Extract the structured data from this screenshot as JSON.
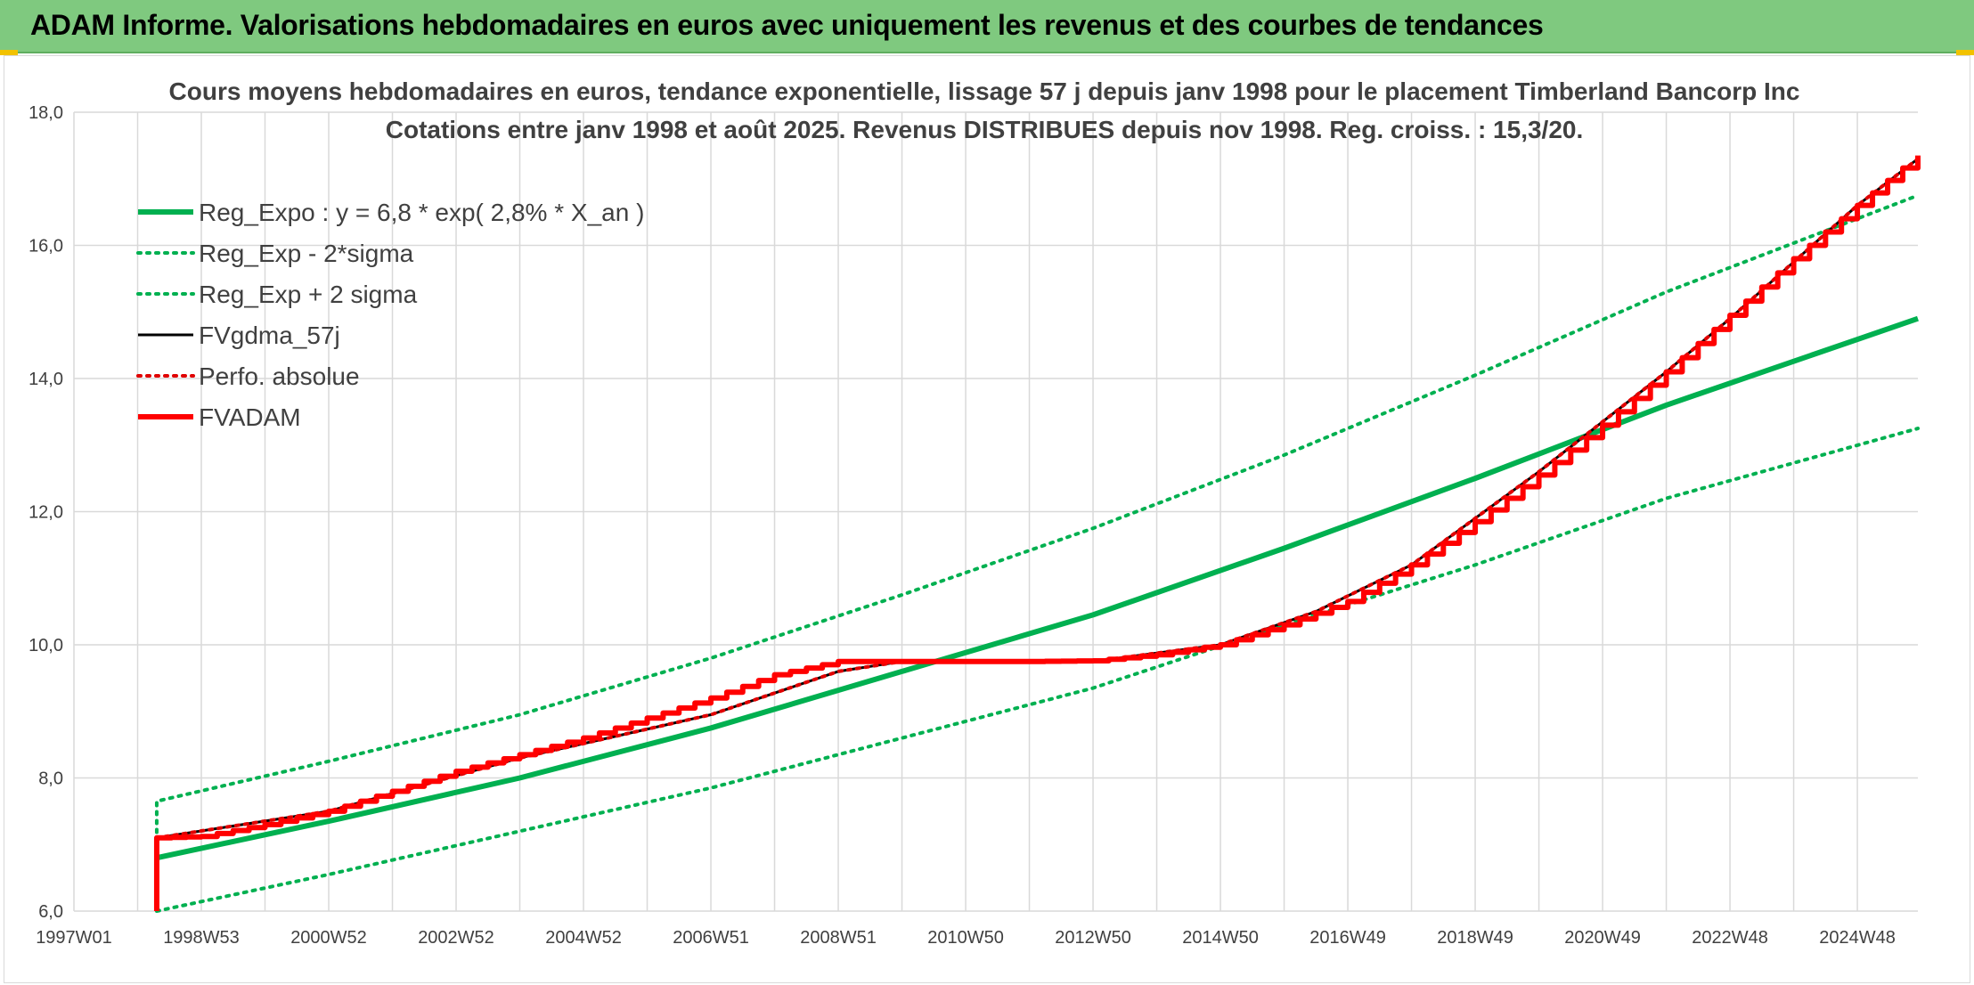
{
  "banner": {
    "title": "ADAM Informe. Valorisations hebdomadaires en euros avec uniquement les revenus et des courbes de tendances"
  },
  "colors": {
    "banner_bg": "#7fc97f",
    "trend_green": "#00b050",
    "fvadam_red": "#ff0000",
    "fvgdma_black": "#000000",
    "perfo_red": "#e00000",
    "grid": "#d9d9d9",
    "text": "#404040"
  },
  "chart_data": {
    "type": "line",
    "title_lines": [
      "Cours moyens hebdomadaires en euros, tendance exponentielle, lissage 57 j depuis janv 1998 pour le placement Timberland Bancorp Inc",
      "Cotations entre janv 1998 et août 2025. Revenus DISTRIBUES depuis nov 1998. Reg. croiss. : 15,3/20."
    ],
    "x_tick_labels": [
      "1997W01",
      "1998W53",
      "2000W52",
      "2002W52",
      "2004W52",
      "2006W51",
      "2008W51",
      "2010W50",
      "2012W50",
      "2014W50",
      "2016W49",
      "2018W49",
      "2020W49",
      "2022W48",
      "2024W48"
    ],
    "x_ticks": [
      1997.0,
      1999.0,
      2001.0,
      2003.0,
      2005.0,
      2007.0,
      2009.0,
      2011.0,
      2013.0,
      2015.0,
      2017.0,
      2019.0,
      2021.0,
      2023.0,
      2025.0
    ],
    "xlim": [
      1997.0,
      2025.95
    ],
    "ylim": [
      6.0,
      18.0
    ],
    "y_ticks": [
      6.0,
      8.0,
      10.0,
      12.0,
      14.0,
      16.0,
      18.0
    ],
    "y_tick_labels": [
      "6,0",
      "8,0",
      "10,0",
      "12,0",
      "14,0",
      "16,0",
      "18,0"
    ],
    "grid": true,
    "legend_position": "top-left",
    "series": [
      {
        "name": "Reg_Expo : y = 6,8 * exp( 2,8% *  X_an )",
        "style": "solid-thick",
        "color": "#00b050",
        "x": [
          1998.3,
          2001.0,
          2004.0,
          2007.0,
          2010.0,
          2013.0,
          2016.0,
          2019.0,
          2022.0,
          2025.95
        ],
        "y": [
          6.8,
          7.35,
          8.0,
          8.75,
          9.6,
          10.45,
          11.45,
          12.5,
          13.6,
          14.9
        ]
      },
      {
        "name": "Reg_Exp - 2*sigma",
        "style": "dotted",
        "color": "#00b050",
        "x": [
          1998.3,
          2001.0,
          2004.0,
          2007.0,
          2010.0,
          2013.0,
          2016.0,
          2019.0,
          2022.0,
          2025.95
        ],
        "y": [
          6.0,
          6.55,
          7.2,
          7.85,
          8.6,
          9.35,
          10.3,
          11.2,
          12.2,
          13.25
        ]
      },
      {
        "name": "Reg_Exp + 2 sigma",
        "style": "dotted",
        "color": "#00b050",
        "x": [
          1998.3,
          1998.3,
          2001.0,
          2004.0,
          2007.0,
          2010.0,
          2013.0,
          2016.0,
          2019.0,
          2022.0,
          2025.95
        ],
        "y": [
          7.05,
          7.65,
          8.25,
          8.95,
          9.8,
          10.75,
          11.75,
          12.85,
          14.05,
          15.3,
          16.75
        ]
      },
      {
        "name": "FVgdma_57j",
        "style": "solid",
        "color": "#000000",
        "x": [
          1998.3,
          2001.0,
          2004.0,
          2007.0,
          2009.0,
          2010.0,
          2013.0,
          2015.0,
          2016.5,
          2018.0,
          2019.0,
          2020.0,
          2021.0,
          2022.0,
          2023.0,
          2024.0,
          2025.0,
          2025.95
        ],
        "y": [
          7.1,
          7.5,
          8.3,
          8.95,
          9.6,
          9.75,
          9.75,
          10.0,
          10.5,
          11.2,
          11.9,
          12.6,
          13.35,
          14.1,
          14.9,
          15.75,
          16.6,
          17.3
        ]
      },
      {
        "name": "Perfo. absolue",
        "style": "dotted",
        "color": "#e00000",
        "x": [
          1998.3,
          2001.0,
          2004.0,
          2007.0,
          2009.0,
          2010.0,
          2013.0,
          2015.0,
          2016.5,
          2018.0,
          2019.0,
          2020.0,
          2021.0,
          2022.0,
          2023.0,
          2024.0,
          2025.0,
          2025.95
        ],
        "y": [
          7.1,
          7.5,
          8.3,
          8.95,
          9.6,
          9.75,
          9.75,
          10.0,
          10.5,
          11.2,
          11.9,
          12.6,
          13.35,
          14.1,
          14.9,
          15.75,
          16.6,
          17.3
        ]
      },
      {
        "name": "FVADAM",
        "style": "solid-thick",
        "color": "#ff0000",
        "x": [
          1998.3,
          1998.3,
          1999.0,
          2000.0,
          2001.0,
          2002.0,
          2003.0,
          2004.0,
          2005.0,
          2006.0,
          2007.0,
          2008.0,
          2009.0,
          2010.0,
          2011.0,
          2012.0,
          2013.0,
          2014.0,
          2015.0,
          2016.0,
          2017.0,
          2018.0,
          2019.0,
          2020.0,
          2021.0,
          2022.0,
          2023.0,
          2024.0,
          2025.0,
          2025.95
        ],
        "y": [
          6.0,
          7.1,
          7.12,
          7.3,
          7.5,
          7.8,
          8.1,
          8.35,
          8.6,
          8.9,
          9.2,
          9.55,
          9.75,
          9.75,
          9.75,
          9.75,
          9.76,
          9.85,
          10.0,
          10.3,
          10.65,
          11.2,
          11.85,
          12.55,
          13.3,
          14.1,
          14.95,
          15.8,
          16.6,
          17.35
        ]
      }
    ]
  }
}
